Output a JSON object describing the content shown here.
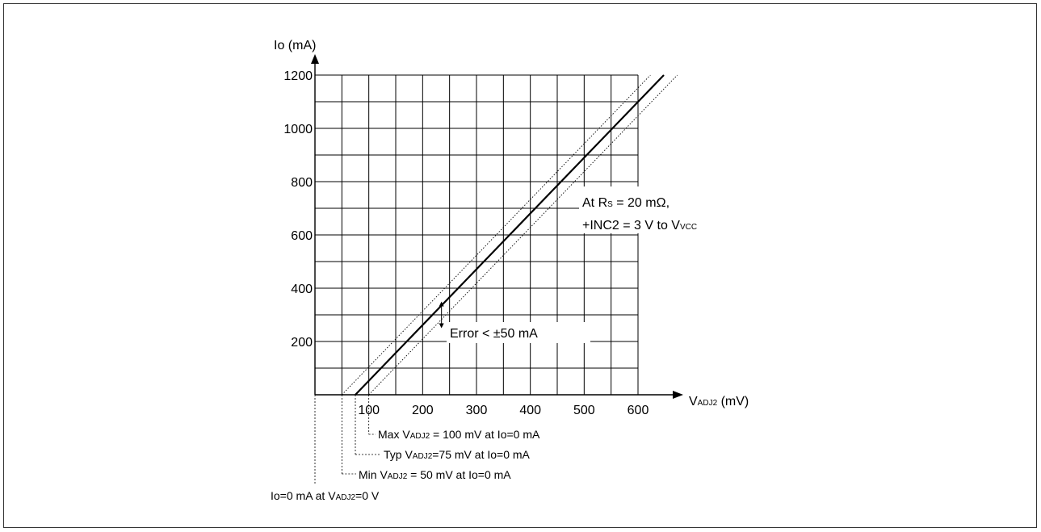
{
  "chart_data": {
    "type": "line",
    "title": "",
    "xlabel": {
      "main": "V",
      "sub": "ADJ2",
      "unit": " (mV)"
    },
    "ylabel": "Io (mA)",
    "x_ticks": [
      100,
      200,
      300,
      400,
      500,
      600
    ],
    "y_ticks": [
      200,
      400,
      600,
      800,
      1000,
      1200
    ],
    "xlim": [
      0,
      600
    ],
    "ylim": [
      0,
      1200
    ],
    "grid_x_step": 50,
    "grid_y_step": 100,
    "grid": true,
    "series": [
      {
        "style": "solid",
        "x": [
          75,
          648
        ],
        "y": [
          0,
          1200
        ]
      },
      {
        "style": "dotted",
        "x": [
          50,
          623
        ],
        "y": [
          0,
          1200
        ]
      },
      {
        "style": "dotted",
        "x": [
          100,
          673
        ],
        "y": [
          0,
          1200
        ]
      }
    ],
    "annotations": {
      "condition": {
        "line1_a": "At R",
        "line1_sub": "S",
        "line1_b": " = 20 mΩ,",
        "line2_a": "+INC2 = 3 V to V",
        "line2_sub": "VCC"
      },
      "error": "Error < ±50 mA",
      "max": {
        "a": "Max V",
        "sub": "ADJ2",
        "b": " = 100 mV at Io=0 mA",
        "x": 100
      },
      "typ": {
        "a": "Typ V",
        "sub": "ADJ2",
        "b": "=75 mV at Io=0 mA",
        "x": 75
      },
      "min": {
        "a": "Min V",
        "sub": "ADJ2",
        "b": " = 50 mV at Io=0 mA",
        "x": 50
      },
      "zero": {
        "a": "Io=0 mA at V",
        "sub": "ADJ2",
        "b": "=0 V",
        "x": 0
      }
    },
    "error_arrow": {
      "x": 235,
      "y_from": 250,
      "y_to": 350
    }
  },
  "colors": {
    "grid": "#000000",
    "line": "#000000"
  }
}
